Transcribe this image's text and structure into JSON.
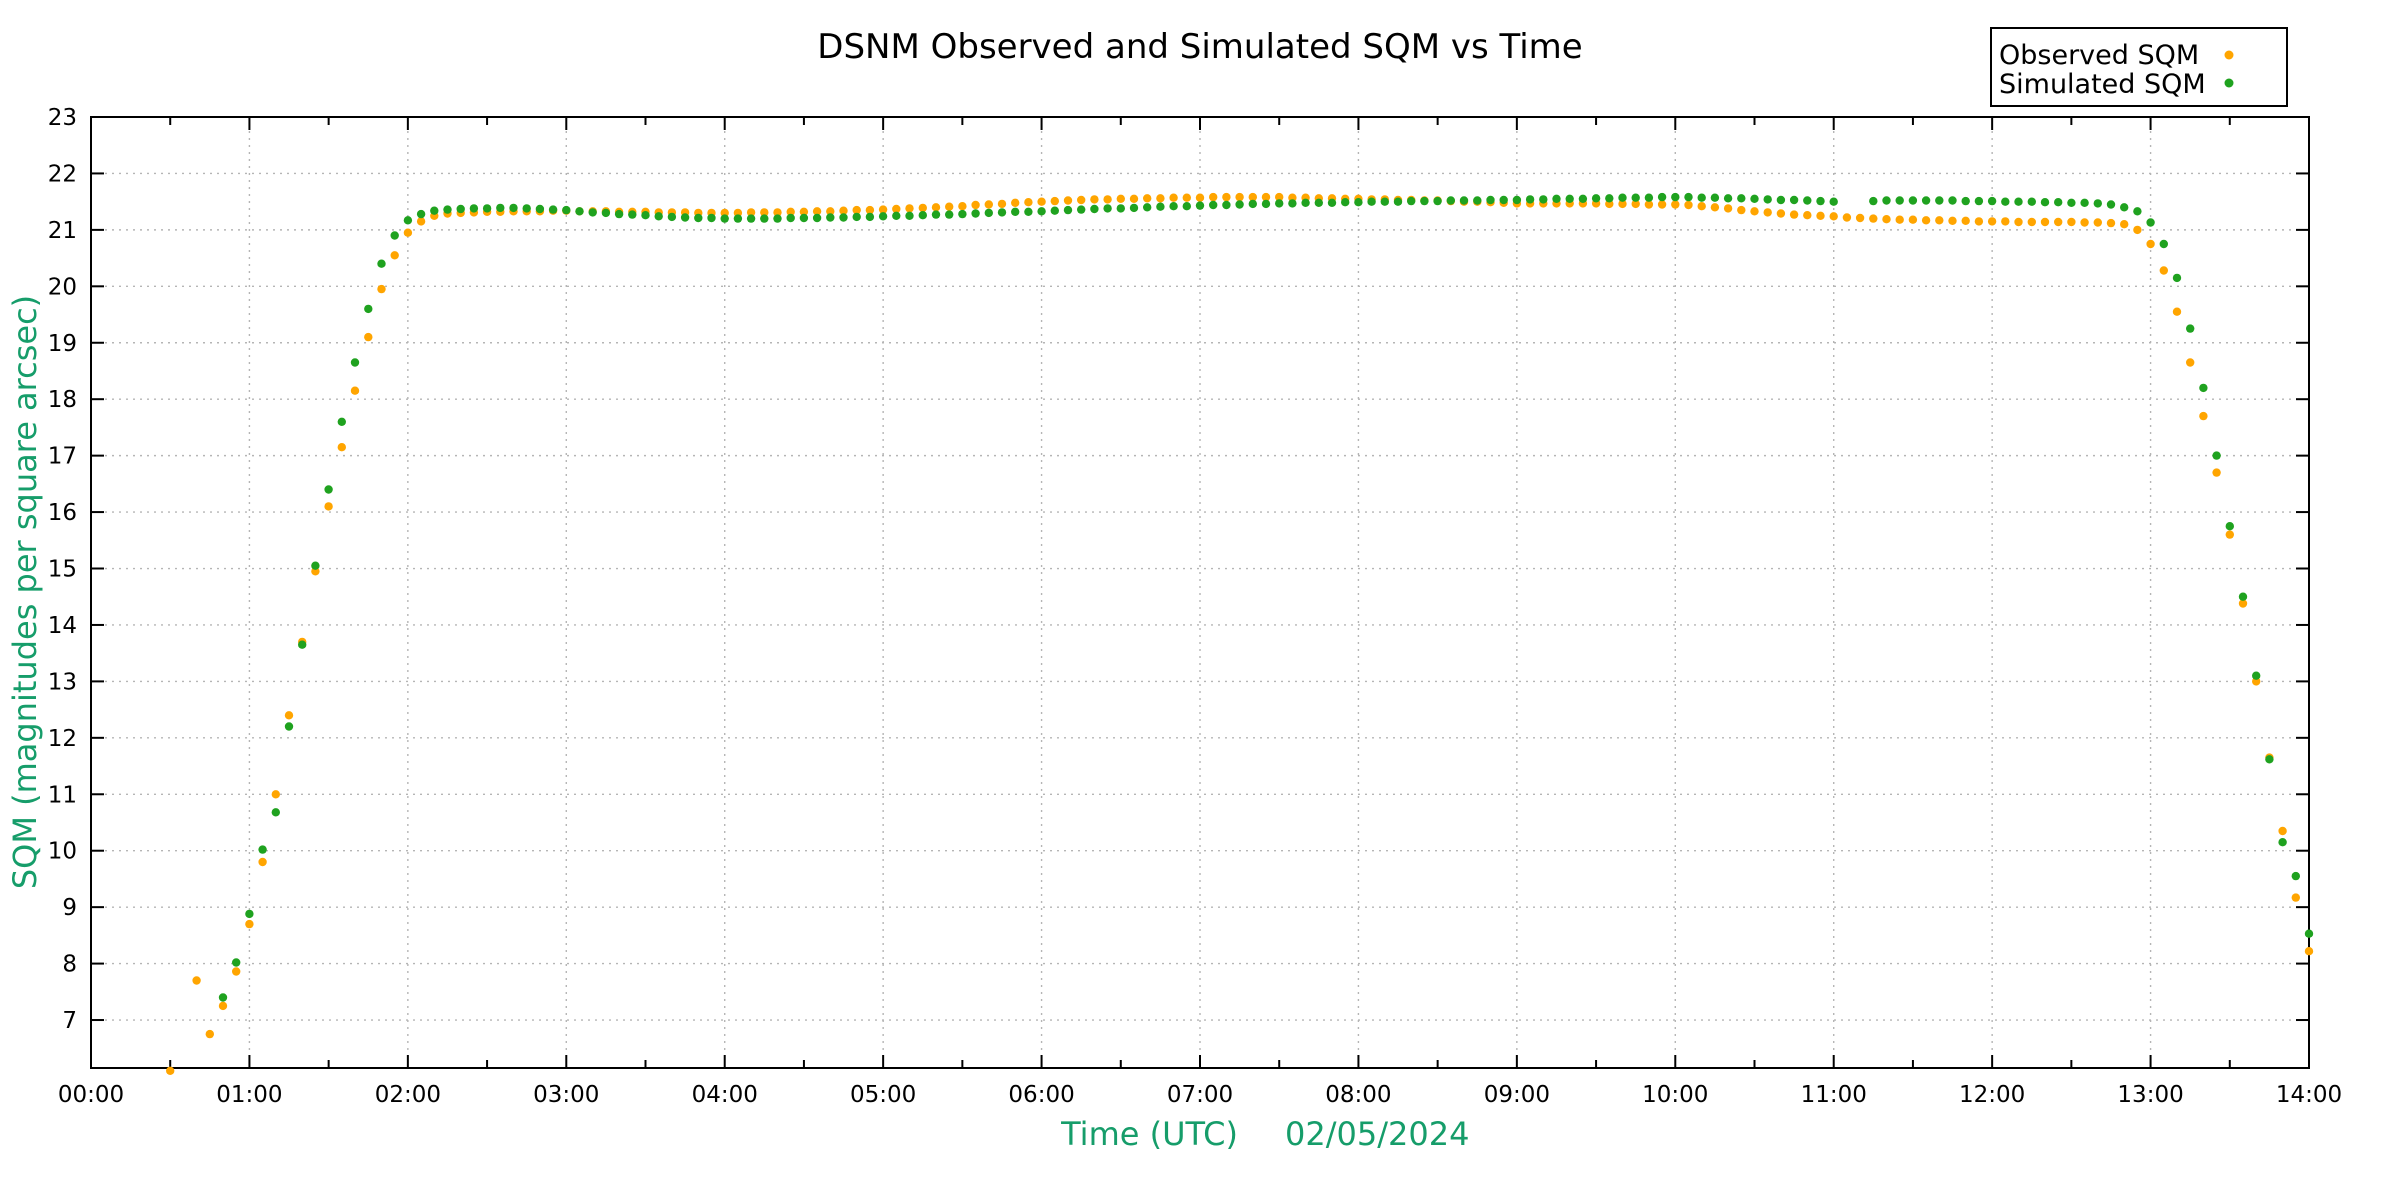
{
  "title": "DSNM Observed and Simulated SQM vs Time",
  "colors": {
    "observed": "#ffa500",
    "simulated": "#1fa21f",
    "axis_label_text": "#169d6a",
    "grid": "#b5b5b5",
    "border": "#000000",
    "tick_text": "#000000",
    "background": "#ffffff"
  },
  "legend": {
    "items": [
      {
        "label": "Observed SQM",
        "color": "#ffa500"
      },
      {
        "label": "Simulated SQM",
        "color": "#1fa21f"
      }
    ]
  },
  "axes": {
    "x_label": "Time (UTC)",
    "x_date": "02/05/2024",
    "y_label": "SQM (magnitudes per square arcsec)",
    "x_minor_step_hours": 0.5,
    "x_ticks": [
      {
        "h": 0,
        "label": "00:00"
      },
      {
        "h": 1,
        "label": "01:00"
      },
      {
        "h": 2,
        "label": "02:00"
      },
      {
        "h": 3,
        "label": "03:00"
      },
      {
        "h": 4,
        "label": "04:00"
      },
      {
        "h": 5,
        "label": "05:00"
      },
      {
        "h": 6,
        "label": "06:00"
      },
      {
        "h": 7,
        "label": "07:00"
      },
      {
        "h": 8,
        "label": "08:00"
      },
      {
        "h": 9,
        "label": "09:00"
      },
      {
        "h": 10,
        "label": "10:00"
      },
      {
        "h": 11,
        "label": "11:00"
      },
      {
        "h": 12,
        "label": "12:00"
      },
      {
        "h": 13,
        "label": "13:00"
      },
      {
        "h": 14,
        "label": "14:00"
      }
    ],
    "y_ticks": [
      {
        "v": 7,
        "label": "7"
      },
      {
        "v": 8,
        "label": "8"
      },
      {
        "v": 9,
        "label": "9"
      },
      {
        "v": 10,
        "label": "10"
      },
      {
        "v": 11,
        "label": "11"
      },
      {
        "v": 12,
        "label": "12"
      },
      {
        "v": 13,
        "label": "13"
      },
      {
        "v": 14,
        "label": "14"
      },
      {
        "v": 15,
        "label": "15"
      },
      {
        "v": 16,
        "label": "16"
      },
      {
        "v": 17,
        "label": "17"
      },
      {
        "v": 18,
        "label": "18"
      },
      {
        "v": 19,
        "label": "19"
      },
      {
        "v": 20,
        "label": "20"
      },
      {
        "v": 21,
        "label": "21"
      },
      {
        "v": 22,
        "label": "22"
      },
      {
        "v": 23,
        "label": "23"
      }
    ]
  },
  "chart_data": {
    "type": "scatter",
    "title": "DSNM Observed and Simulated SQM vs Time",
    "xlabel": "Time (UTC)   02/05/2024",
    "ylabel": "SQM (magnitudes per square arcsec)",
    "x_unit": "hours UTC",
    "xlim": [
      0,
      14
    ],
    "ylim": [
      6.15,
      23
    ],
    "grid": true,
    "legend_position": "top-right",
    "sampling": {
      "start_hour": 0.5,
      "step_minutes": 5,
      "note": "values[i] sampled at start_hour + i*step_minutes/60; null = no measurement"
    },
    "series": [
      {
        "name": "Observed SQM",
        "color": "#ffa500",
        "marker": "dot",
        "values": [
          6.1,
          null,
          7.7,
          6.75,
          7.25,
          7.86,
          8.7,
          9.8,
          11.0,
          12.4,
          13.7,
          14.95,
          16.1,
          17.15,
          18.15,
          19.1,
          19.95,
          20.55,
          20.95,
          21.15,
          21.25,
          21.29,
          21.3,
          21.31,
          21.32,
          21.32,
          21.33,
          21.33,
          21.33,
          21.34,
          21.34,
          21.33,
          21.33,
          21.33,
          21.32,
          21.32,
          21.32,
          21.31,
          21.31,
          21.31,
          21.3,
          21.3,
          21.3,
          21.3,
          21.31,
          21.31,
          21.31,
          21.32,
          21.32,
          21.33,
          21.33,
          21.34,
          21.35,
          21.35,
          21.36,
          21.37,
          21.38,
          21.39,
          21.4,
          21.41,
          21.42,
          21.44,
          21.45,
          21.46,
          21.48,
          21.49,
          21.5,
          21.51,
          21.52,
          21.53,
          21.54,
          21.54,
          21.55,
          21.55,
          21.56,
          21.56,
          21.57,
          21.57,
          21.57,
          21.58,
          21.58,
          21.58,
          21.58,
          21.58,
          21.58,
          21.57,
          21.57,
          21.56,
          21.56,
          21.55,
          21.55,
          21.54,
          21.54,
          21.53,
          21.53,
          21.52,
          21.52,
          21.51,
          21.5,
          21.5,
          21.49,
          21.48,
          21.47,
          21.47,
          21.47,
          21.47,
          21.47,
          21.47,
          21.47,
          21.46,
          21.46,
          21.46,
          21.45,
          21.45,
          21.45,
          21.44,
          21.42,
          21.4,
          21.38,
          21.35,
          21.33,
          21.31,
          21.29,
          21.27,
          21.26,
          21.25,
          21.24,
          21.22,
          21.21,
          21.2,
          21.19,
          21.18,
          21.18,
          21.17,
          21.17,
          21.16,
          21.16,
          21.15,
          21.15,
          21.15,
          21.14,
          21.14,
          21.14,
          21.14,
          21.14,
          21.13,
          21.13,
          21.12,
          21.1,
          21.0,
          20.75,
          20.28,
          19.55,
          18.65,
          17.7,
          16.7,
          15.6,
          14.38,
          13.0,
          11.65,
          10.35,
          9.17,
          8.22
        ]
      },
      {
        "name": "Simulated SQM",
        "color": "#1fa21f",
        "marker": "dot",
        "values": [
          null,
          null,
          null,
          null,
          7.4,
          8.02,
          8.88,
          10.02,
          10.68,
          12.2,
          13.65,
          15.05,
          16.4,
          17.6,
          18.65,
          19.6,
          20.4,
          20.9,
          21.17,
          21.28,
          21.34,
          21.36,
          21.37,
          21.38,
          21.38,
          21.39,
          21.39,
          21.38,
          21.37,
          21.36,
          21.35,
          21.33,
          21.31,
          21.3,
          21.28,
          21.27,
          21.26,
          21.24,
          21.23,
          21.22,
          21.21,
          21.21,
          21.2,
          21.2,
          21.2,
          21.2,
          21.2,
          21.21,
          21.21,
          21.21,
          21.22,
          21.22,
          21.23,
          21.23,
          21.24,
          21.25,
          21.25,
          21.26,
          21.27,
          21.27,
          21.28,
          21.29,
          21.3,
          21.31,
          21.32,
          21.32,
          21.33,
          21.34,
          21.35,
          21.36,
          21.37,
          21.38,
          21.38,
          21.39,
          21.4,
          21.41,
          21.42,
          21.42,
          21.43,
          21.44,
          21.44,
          21.45,
          21.46,
          21.46,
          21.47,
          21.47,
          21.48,
          21.48,
          21.48,
          21.49,
          21.49,
          21.5,
          21.5,
          21.5,
          21.51,
          21.51,
          21.51,
          21.52,
          21.52,
          21.52,
          21.53,
          21.53,
          21.53,
          21.54,
          21.54,
          21.55,
          21.55,
          21.55,
          21.56,
          21.56,
          21.57,
          21.57,
          21.57,
          21.58,
          21.58,
          21.58,
          21.57,
          21.57,
          21.56,
          21.56,
          21.55,
          21.54,
          21.53,
          21.53,
          21.52,
          21.51,
          21.5,
          null,
          null,
          21.51,
          21.52,
          21.52,
          21.52,
          21.52,
          21.52,
          21.52,
          21.51,
          21.51,
          21.51,
          21.5,
          21.5,
          21.5,
          21.49,
          21.49,
          21.48,
          21.48,
          21.47,
          21.45,
          21.4,
          21.33,
          21.13,
          20.75,
          20.15,
          19.25,
          18.2,
          17.0,
          15.75,
          14.5,
          13.1,
          11.62,
          10.15,
          9.55,
          8.53
        ]
      }
    ]
  }
}
